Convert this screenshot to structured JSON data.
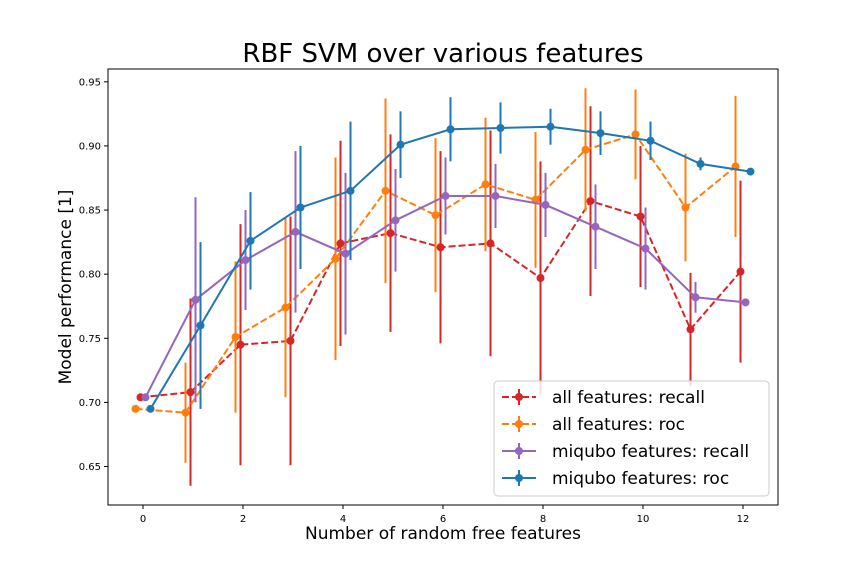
{
  "chart_data": {
    "type": "line",
    "title": "RBF SVM over various features",
    "xlabel": "Number of random free features",
    "ylabel": "Model performance [1]",
    "xlim": [
      -0.7,
      12.7
    ],
    "ylim": [
      0.62,
      0.96
    ],
    "xticks": [
      0,
      2,
      4,
      6,
      8,
      10,
      12
    ],
    "yticks": [
      0.65,
      0.7,
      0.75,
      0.8,
      0.85,
      0.9,
      0.95
    ],
    "xtick_labels": [
      "0",
      "2",
      "4",
      "6",
      "8",
      "10",
      "12"
    ],
    "ytick_labels": [
      "0.65",
      "0.70",
      "0.75",
      "0.80",
      "0.85",
      "0.90",
      "0.95"
    ],
    "grid": false,
    "legend_position": "lower-right",
    "series": [
      {
        "name": "all features: recall",
        "color": "#d62728",
        "dashed": true,
        "x": [
          -0.05,
          0.95,
          1.95,
          2.95,
          3.95,
          4.95,
          5.95,
          6.95,
          7.95,
          8.95,
          9.95,
          10.95,
          11.95
        ],
        "y": [
          0.704,
          0.708,
          0.745,
          0.748,
          0.824,
          0.832,
          0.821,
          0.824,
          0.797,
          0.857,
          0.845,
          0.757,
          0.802
        ],
        "err": [
          0.0,
          0.073,
          0.094,
          0.097,
          0.08,
          0.077,
          0.075,
          0.088,
          0.091,
          0.074,
          0.055,
          0.044,
          0.071
        ]
      },
      {
        "name": "all features: roc",
        "color": "#ff7f0e",
        "dashed": true,
        "x": [
          -0.15,
          0.85,
          1.85,
          2.85,
          3.85,
          4.85,
          5.85,
          6.85,
          7.85,
          8.85,
          9.85,
          10.85,
          11.85
        ],
        "y": [
          0.695,
          0.692,
          0.751,
          0.774,
          0.812,
          0.865,
          0.846,
          0.87,
          0.858,
          0.897,
          0.909,
          0.852,
          0.884
        ],
        "err": [
          0.0,
          0.039,
          0.059,
          0.07,
          0.079,
          0.072,
          0.06,
          0.052,
          0.053,
          0.048,
          0.035,
          0.042,
          0.055
        ]
      },
      {
        "name": "miqubo features: recall",
        "color": "#9467bd",
        "dashed": false,
        "x": [
          0.05,
          1.05,
          2.05,
          3.05,
          4.05,
          5.05,
          6.05,
          7.05,
          8.05,
          9.05,
          10.05,
          11.05,
          12.05
        ],
        "y": [
          0.704,
          0.78,
          0.811,
          0.833,
          0.816,
          0.842,
          0.861,
          0.861,
          0.854,
          0.837,
          0.82,
          0.782,
          0.778
        ],
        "err": [
          0.0,
          0.08,
          0.039,
          0.063,
          0.063,
          0.04,
          0.03,
          0.025,
          0.025,
          0.033,
          0.032,
          0.012,
          0.0
        ]
      },
      {
        "name": "miqubo features: roc",
        "color": "#1f77b4",
        "dashed": false,
        "x": [
          0.15,
          1.15,
          2.15,
          3.15,
          4.15,
          5.15,
          6.15,
          7.15,
          8.15,
          9.15,
          10.15,
          11.15,
          12.15
        ],
        "y": [
          0.695,
          0.76,
          0.826,
          0.852,
          0.865,
          0.901,
          0.913,
          0.914,
          0.915,
          0.91,
          0.904,
          0.886,
          0.88
        ],
        "err": [
          0.0,
          0.065,
          0.038,
          0.048,
          0.054,
          0.026,
          0.025,
          0.02,
          0.014,
          0.017,
          0.015,
          0.005,
          0.0
        ]
      }
    ]
  }
}
